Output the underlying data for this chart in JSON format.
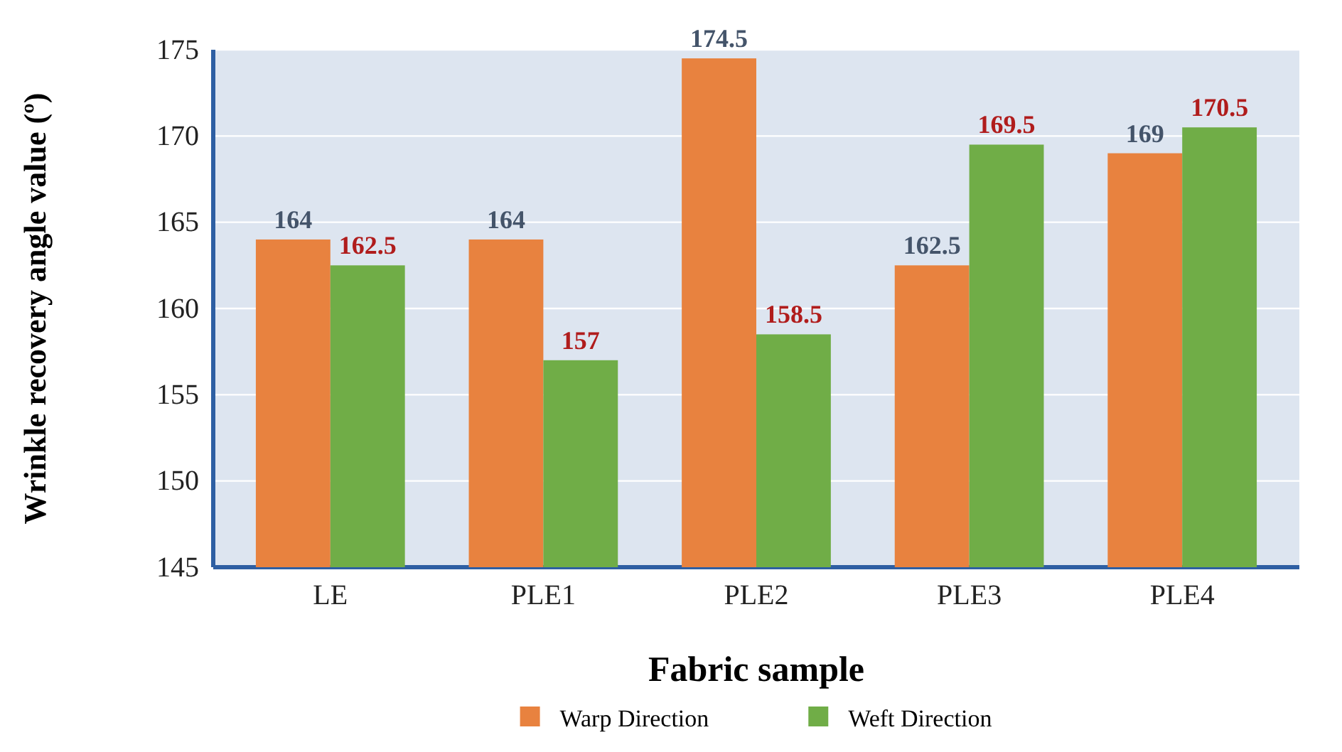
{
  "chart_data": {
    "type": "bar",
    "xlabel": "Fabric sample",
    "ylabel": "Wrinkle recovery angle value (º)",
    "categories": [
      "LE",
      "PLE1",
      "PLE2",
      "PLE3",
      "PLE4"
    ],
    "series": [
      {
        "name": "Warp Direction",
        "color": "#e8823f",
        "values": [
          164,
          164,
          174.5,
          162.5,
          169
        ]
      },
      {
        "name": "Weft Direction",
        "color": "#70ad47",
        "values": [
          162.5,
          157,
          158.5,
          169.5,
          170.5
        ]
      }
    ],
    "ylim": [
      145,
      175
    ],
    "yticks": [
      145,
      150,
      155,
      160,
      165,
      170,
      175
    ],
    "grid": "y",
    "legend": "bottom",
    "data_labels": true
  }
}
